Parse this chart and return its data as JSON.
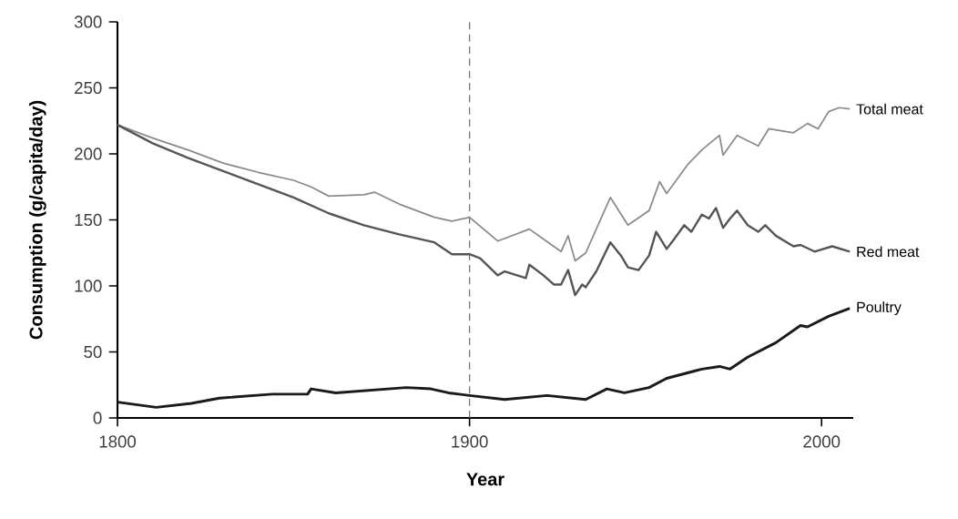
{
  "chart_data": {
    "type": "line",
    "xlabel": "Year",
    "ylabel": "Consumption (g/capita/day)",
    "xlim": [
      1800,
      2009
    ],
    "xticks": [
      1800,
      1900,
      2000
    ],
    "ylim": [
      0,
      300
    ],
    "yticks": [
      0,
      50,
      100,
      150,
      200,
      250,
      300
    ],
    "grid": false,
    "ref_lines": [
      {
        "axis": "x",
        "value": 1900,
        "color": "#777777",
        "line_style": "dashed"
      }
    ],
    "series": [
      {
        "name": "Total meat",
        "color": "#8a8a8a",
        "x": [
          1800,
          1810,
          1820,
          1830,
          1840,
          1850,
          1855,
          1860,
          1870,
          1873,
          1880,
          1890,
          1895,
          1900,
          1908,
          1917,
          1926,
          1928,
          1930,
          1933,
          1940,
          1945,
          1951,
          1954,
          1956,
          1962,
          1966,
          1971,
          1972,
          1976,
          1982,
          1985,
          1992,
          1996,
          1999,
          2002,
          2005,
          2008
        ],
        "values": [
          222,
          212,
          203,
          193,
          186,
          180,
          175,
          168,
          169,
          171,
          162,
          152,
          149,
          152,
          134,
          143,
          126,
          138,
          119,
          125,
          167,
          146,
          157,
          179,
          170,
          192,
          203,
          214,
          199,
          214,
          206,
          219,
          216,
          223,
          219,
          232,
          235,
          234
        ]
      },
      {
        "name": "Red meat",
        "color": "#555555",
        "x": [
          1800,
          1810,
          1820,
          1830,
          1840,
          1850,
          1860,
          1870,
          1880,
          1890,
          1895,
          1900,
          1903,
          1908,
          1910,
          1916,
          1917,
          1921,
          1924,
          1926,
          1928,
          1930,
          1932,
          1933,
          1936,
          1940,
          1943,
          1945,
          1948,
          1951,
          1953,
          1956,
          1958,
          1961,
          1963,
          1966,
          1968,
          1970,
          1972,
          1974,
          1976,
          1979,
          1982,
          1984,
          1987,
          1992,
          1994,
          1998,
          2003,
          2008
        ],
        "values": [
          222,
          208,
          197,
          187,
          177,
          167,
          155,
          146,
          139,
          133,
          124,
          124,
          121,
          108,
          111,
          106,
          116,
          108,
          101,
          101,
          112,
          93,
          101,
          99,
          111,
          133,
          123,
          114,
          112,
          123,
          141,
          128,
          135,
          146,
          141,
          154,
          151,
          159,
          144,
          151,
          157,
          146,
          141,
          146,
          138,
          130,
          131,
          126,
          130,
          126
        ]
      },
      {
        "name": "Poultry",
        "color": "#1a1a1a",
        "x": [
          1800,
          1811,
          1821,
          1829,
          1844,
          1854,
          1855,
          1862,
          1882,
          1889,
          1894,
          1900,
          1910,
          1922,
          1933,
          1939,
          1944,
          1951,
          1956,
          1966,
          1971,
          1974,
          1979,
          1987,
          1994,
          1996,
          2002,
          2008
        ],
        "values": [
          12,
          8,
          11,
          15,
          18,
          18,
          22,
          19,
          23,
          22,
          19,
          17,
          14,
          17,
          14,
          22,
          19,
          23,
          30,
          37,
          39,
          37,
          46,
          57,
          70,
          69,
          77,
          83
        ]
      }
    ]
  }
}
